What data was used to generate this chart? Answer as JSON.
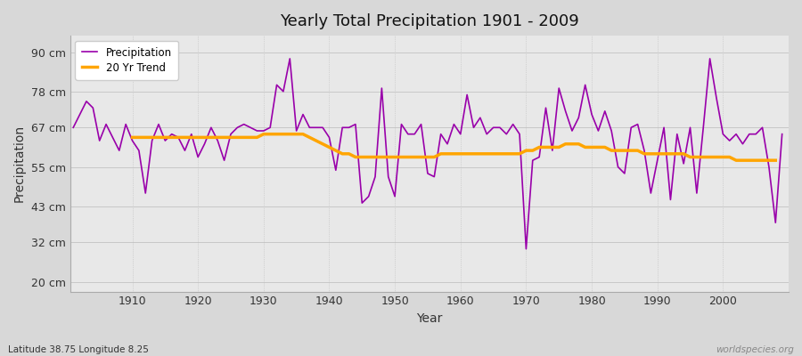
{
  "title": "Yearly Total Precipitation 1901 - 2009",
  "xlabel": "Year",
  "ylabel": "Precipitation",
  "subtitle": "Latitude 38.75 Longitude 8.25",
  "watermark": "worldspecies.org",
  "precipitation_color": "#9900aa",
  "trend_color": "#ffa500",
  "bg_color": "#e8e8e8",
  "fig_bg_color": "#d8d8d8",
  "yticks": [
    20,
    32,
    43,
    55,
    67,
    78,
    90
  ],
  "ytick_labels": [
    "20 cm",
    "32 cm",
    "43 cm",
    "55 cm",
    "67 cm",
    "78 cm",
    "90 cm"
  ],
  "ylim": [
    17,
    95
  ],
  "xlim": [
    1900.5,
    2010
  ],
  "years": [
    1901,
    1902,
    1903,
    1904,
    1905,
    1906,
    1907,
    1908,
    1909,
    1910,
    1911,
    1912,
    1913,
    1914,
    1915,
    1916,
    1917,
    1918,
    1919,
    1920,
    1921,
    1922,
    1923,
    1924,
    1925,
    1926,
    1927,
    1928,
    1929,
    1930,
    1931,
    1932,
    1933,
    1934,
    1935,
    1936,
    1937,
    1938,
    1939,
    1940,
    1941,
    1942,
    1943,
    1944,
    1945,
    1946,
    1947,
    1948,
    1949,
    1950,
    1951,
    1952,
    1953,
    1954,
    1955,
    1956,
    1957,
    1958,
    1959,
    1960,
    1961,
    1962,
    1963,
    1964,
    1965,
    1966,
    1967,
    1968,
    1969,
    1970,
    1971,
    1972,
    1973,
    1974,
    1975,
    1976,
    1977,
    1978,
    1979,
    1980,
    1981,
    1982,
    1983,
    1984,
    1985,
    1986,
    1987,
    1988,
    1989,
    1990,
    1991,
    1992,
    1993,
    1994,
    1995,
    1996,
    1997,
    1998,
    1999,
    2000,
    2001,
    2002,
    2003,
    2004,
    2005,
    2006,
    2007,
    2008,
    2009
  ],
  "precip": [
    67,
    71,
    75,
    73,
    63,
    68,
    64,
    60,
    68,
    63,
    60,
    47,
    63,
    68,
    63,
    65,
    64,
    60,
    65,
    58,
    62,
    67,
    63,
    57,
    65,
    67,
    68,
    67,
    66,
    66,
    67,
    80,
    78,
    88,
    66,
    71,
    67,
    67,
    67,
    64,
    54,
    67,
    67,
    68,
    44,
    46,
    52,
    79,
    52,
    46,
    68,
    65,
    65,
    68,
    53,
    52,
    65,
    62,
    68,
    65,
    77,
    67,
    70,
    65,
    67,
    67,
    65,
    68,
    65,
    30,
    57,
    58,
    73,
    60,
    79,
    72,
    66,
    70,
    80,
    71,
    66,
    72,
    66,
    55,
    53,
    67,
    68,
    60,
    47,
    57,
    67,
    45,
    65,
    56,
    67,
    47,
    67,
    88,
    76,
    65,
    63,
    65,
    62,
    65,
    65,
    67,
    55,
    38,
    65
  ],
  "trend_start_year": 1910,
  "trend": [
    64,
    64,
    64,
    64,
    64,
    64,
    64,
    64,
    64,
    64,
    64,
    64,
    64,
    64,
    64,
    64,
    64,
    64,
    64,
    64,
    65,
    65,
    65,
    65,
    65,
    65,
    65,
    64,
    63,
    62,
    61,
    60,
    59,
    59,
    58,
    58,
    58,
    58,
    58,
    58,
    58,
    58,
    58,
    58,
    58,
    58,
    58,
    59,
    59,
    59,
    59,
    59,
    59,
    59,
    59,
    59,
    59,
    59,
    59,
    59,
    60,
    60,
    61,
    61,
    61,
    61,
    62,
    62,
    62,
    61,
    61,
    61,
    61,
    60,
    60,
    60,
    60,
    60,
    59,
    59,
    59,
    59,
    59,
    59,
    59,
    58,
    58,
    58,
    58,
    58,
    58,
    58,
    57,
    57,
    57,
    57,
    57,
    57,
    57
  ]
}
